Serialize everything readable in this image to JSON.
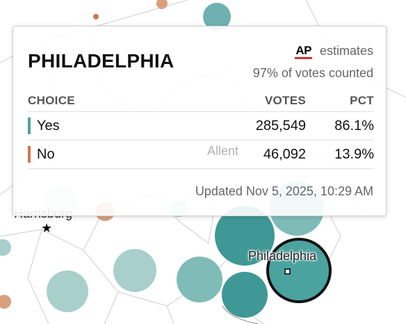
{
  "map": {
    "labels": {
      "philadelphia": "Philadelphia",
      "harrisburg": "Harrisburg",
      "allentown": "Allent"
    },
    "marker_colors": {
      "yes": "#4a9e9c",
      "yes_light": "#a8cfcc",
      "no": "#c97a55",
      "no_light": "#e6b9a2",
      "border": "#d4d4d4"
    }
  },
  "tooltip": {
    "title": "PHILADELPHIA",
    "source_logo": "AP",
    "source_text": "estimates",
    "counted": "97% of votes counted",
    "columns": {
      "choice": "CHOICE",
      "votes": "VOTES",
      "pct": "PCT"
    },
    "rows": [
      {
        "choice": "Yes",
        "votes": "285,549",
        "pct": "86.1%",
        "color": "#4ba3a0"
      },
      {
        "choice": "No",
        "votes": "46,092",
        "pct": "13.9%",
        "color": "#d0764a"
      }
    ],
    "updated": "Updated Nov 5, 2025, 10:29 AM"
  }
}
